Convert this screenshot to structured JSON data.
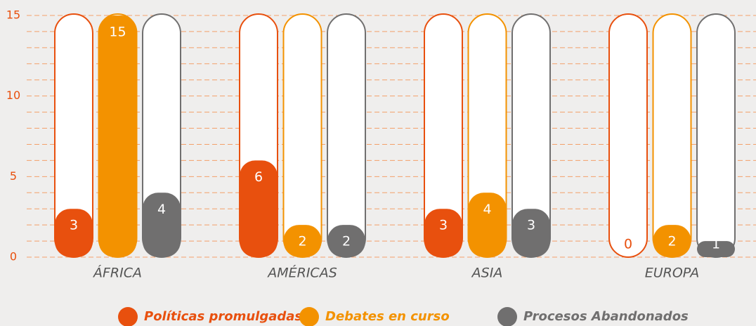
{
  "chart_data": {
    "type": "bar",
    "categories": [
      "ÁFRICA",
      "AMÉRICAS",
      "ASIA",
      "EUROPA"
    ],
    "series": [
      {
        "name": "Políticas promulgadas",
        "color": "#e8500e",
        "values": [
          3,
          6,
          3,
          0
        ]
      },
      {
        "name": "Debates en curso",
        "color": "#f39200",
        "values": [
          15,
          2,
          4,
          2
        ]
      },
      {
        "name": "Procesos Abandonados",
        "color": "#706f6f",
        "values": [
          4,
          2,
          3,
          1
        ]
      }
    ],
    "ylim": [
      0,
      15
    ],
    "yticks": [
      0,
      5,
      10,
      15
    ],
    "grid_yticks": [
      0,
      1,
      2,
      3,
      4,
      5,
      6,
      7,
      8,
      9,
      10,
      11,
      12,
      13,
      14,
      15
    ],
    "grid": true,
    "legend": "bottom"
  }
}
